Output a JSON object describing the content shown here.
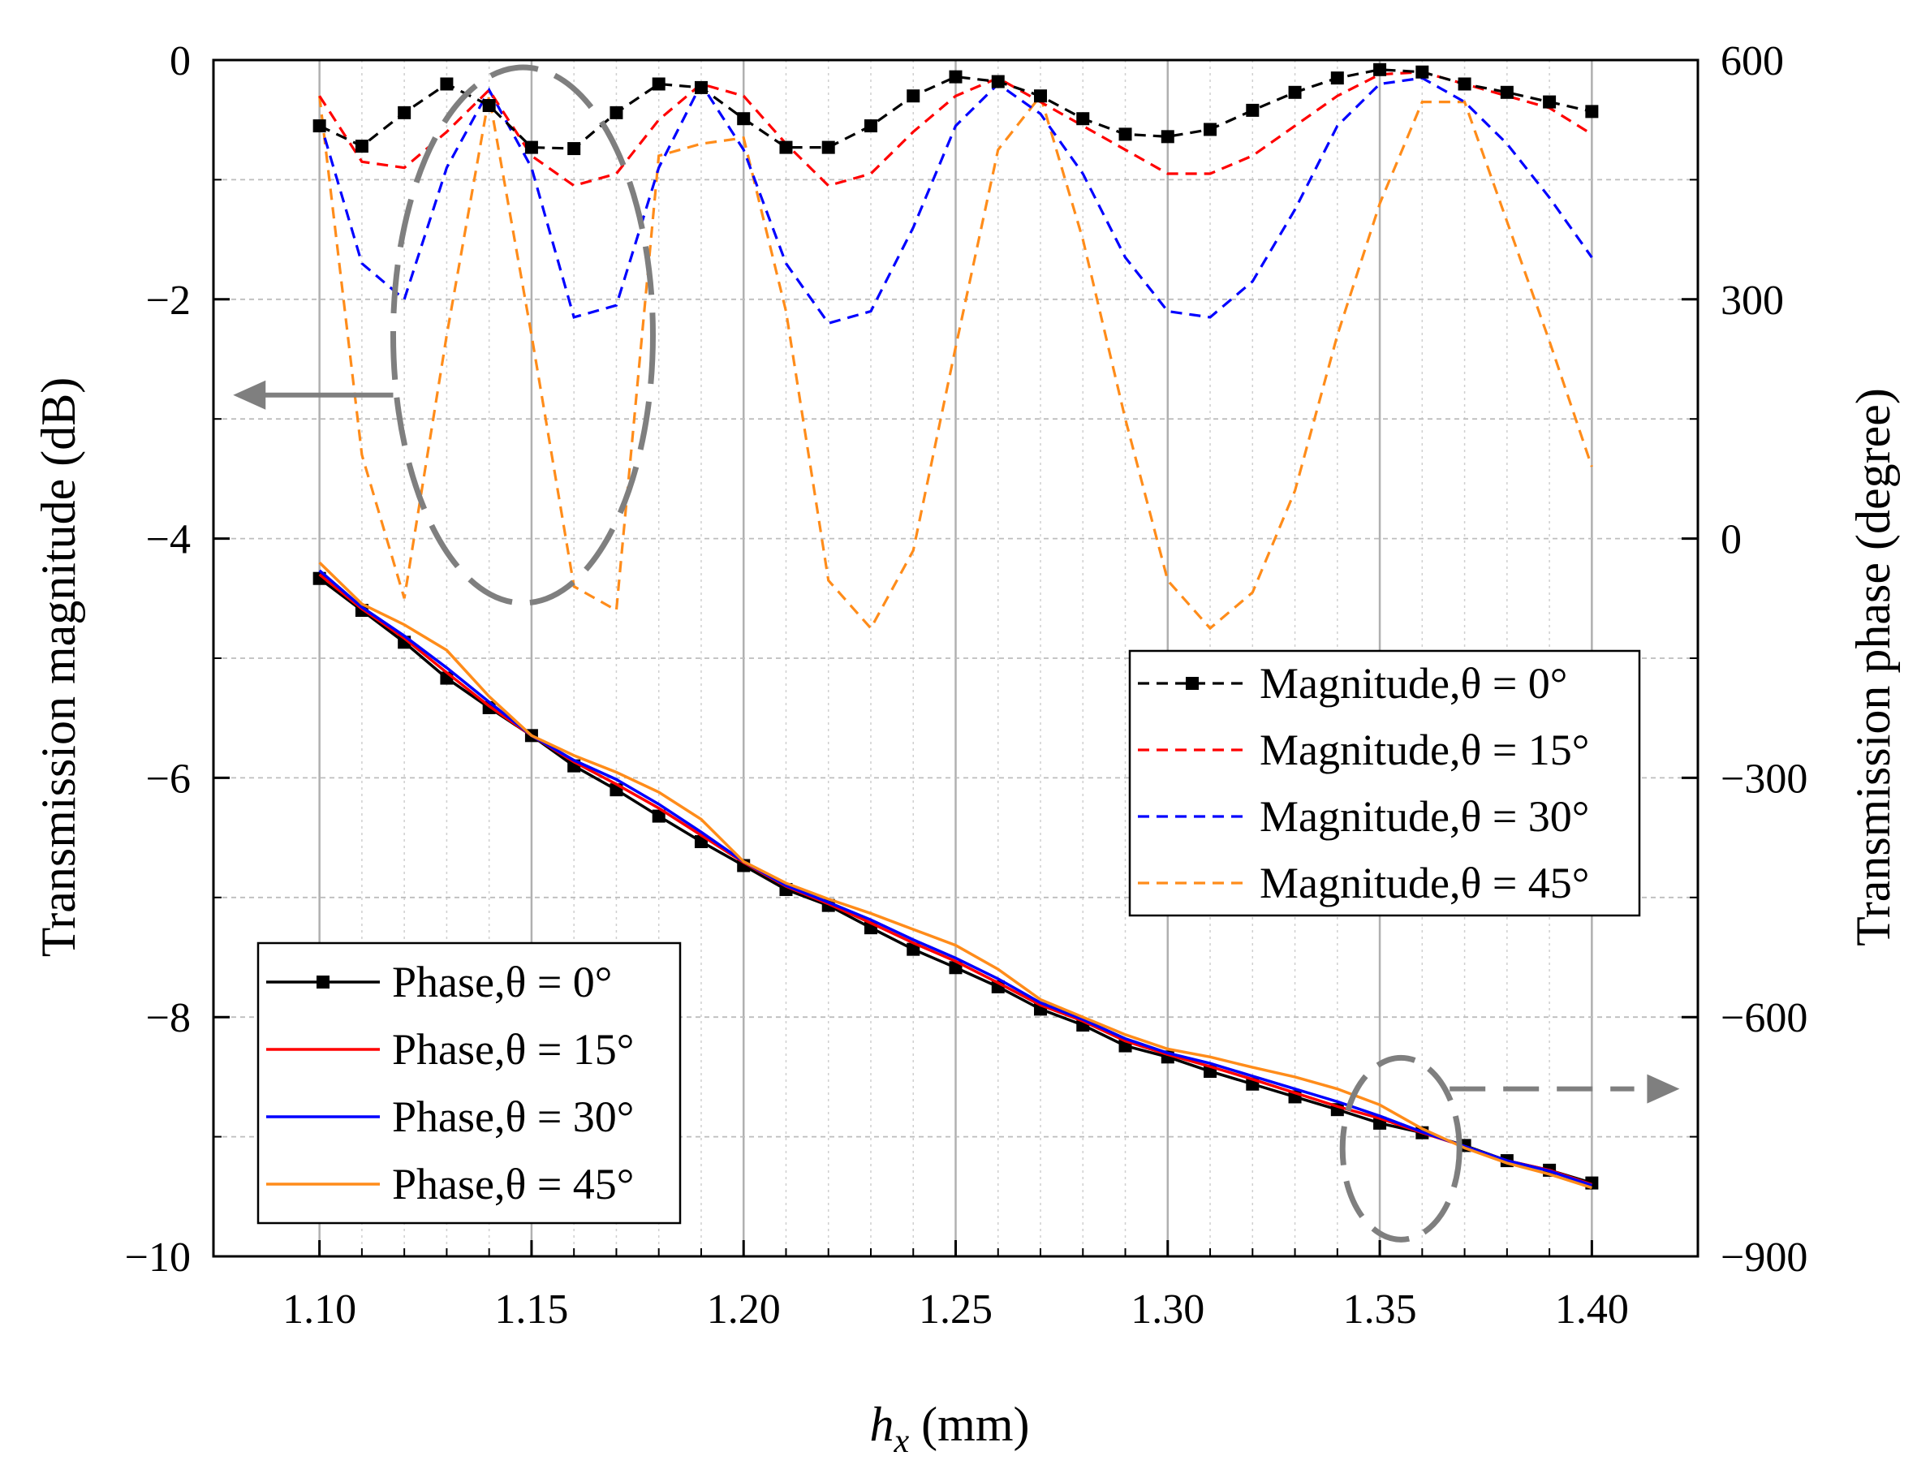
{
  "chart_data": {
    "type": "line",
    "xlabel_italic": "h",
    "xlabel_sub": "x",
    "xlabel_rest": " (mm)",
    "ylabel_left": "Transmission magnitude (dB)",
    "ylabel_right": "Transmission phase (degree)",
    "xlim": [
      1.075,
      1.425
    ],
    "ylim_left": [
      -10,
      0
    ],
    "ylim_right": [
      -900,
      600
    ],
    "x_ticks": [
      1.1,
      1.15,
      1.2,
      1.25,
      1.3,
      1.35,
      1.4
    ],
    "x_tick_labels": [
      "1.10",
      "1.15",
      "1.20",
      "1.25",
      "1.30",
      "1.35",
      "1.40"
    ],
    "y_left_ticks": [
      0,
      -2,
      -4,
      -6,
      -8,
      -10
    ],
    "y_left_tick_labels": [
      "0",
      "−2",
      "−4",
      "−6",
      "−8",
      "−10"
    ],
    "y_right_ticks": [
      600,
      300,
      0,
      -300,
      -600,
      -900
    ],
    "y_right_tick_labels": [
      "600",
      "300",
      "0",
      "−300",
      "−600",
      "−900"
    ],
    "grid": true,
    "colors": {
      "theta0": "#000000",
      "theta15": "#ff0000",
      "theta30": "#0000ff",
      "theta45": "#ff8c1a",
      "annotation": "#7f7f7f",
      "grid": "#bfbfbf"
    },
    "x": [
      1.1,
      1.11,
      1.12,
      1.13,
      1.14,
      1.15,
      1.16,
      1.17,
      1.18,
      1.19,
      1.2,
      1.21,
      1.22,
      1.23,
      1.24,
      1.25,
      1.26,
      1.27,
      1.28,
      1.29,
      1.3,
      1.31,
      1.32,
      1.33,
      1.34,
      1.35,
      1.36,
      1.37,
      1.38,
      1.39,
      1.4
    ],
    "magnitude_series": [
      {
        "name": "Magnitude,θ = 0°",
        "color": "theta0",
        "markers": true,
        "values": [
          -0.55,
          -0.72,
          -0.44,
          -0.2,
          -0.38,
          -0.73,
          -0.74,
          -0.44,
          -0.2,
          -0.23,
          -0.49,
          -0.73,
          -0.73,
          -0.55,
          -0.3,
          -0.14,
          -0.18,
          -0.3,
          -0.49,
          -0.62,
          -0.64,
          -0.58,
          -0.42,
          -0.27,
          -0.15,
          -0.08,
          -0.1,
          -0.2,
          -0.27,
          -0.35,
          -0.43
        ]
      },
      {
        "name": "Magnitude,θ = 15°",
        "color": "theta15",
        "markers": false,
        "values": [
          -0.3,
          -0.85,
          -0.9,
          -0.6,
          -0.25,
          -0.8,
          -1.05,
          -0.95,
          -0.5,
          -0.2,
          -0.3,
          -0.7,
          -1.05,
          -0.95,
          -0.6,
          -0.3,
          -0.15,
          -0.35,
          -0.55,
          -0.75,
          -0.95,
          -0.95,
          -0.8,
          -0.55,
          -0.3,
          -0.12,
          -0.1,
          -0.2,
          -0.3,
          -0.4,
          -0.62
        ]
      },
      {
        "name": "Magnitude,θ = 30°",
        "color": "theta30",
        "markers": false,
        "values": [
          -0.5,
          -1.7,
          -2.0,
          -0.9,
          -0.25,
          -0.9,
          -2.15,
          -2.05,
          -0.9,
          -0.2,
          -0.75,
          -1.7,
          -2.2,
          -2.1,
          -1.4,
          -0.55,
          -0.2,
          -0.45,
          -0.95,
          -1.65,
          -2.1,
          -2.15,
          -1.85,
          -1.25,
          -0.55,
          -0.2,
          -0.15,
          -0.35,
          -0.7,
          -1.15,
          -1.65
        ]
      },
      {
        "name": "Magnitude,θ = 45°",
        "color": "theta45",
        "markers": false,
        "values": [
          -0.3,
          -3.3,
          -4.5,
          -2.3,
          -0.3,
          -2.3,
          -4.4,
          -4.6,
          -0.8,
          -0.7,
          -0.65,
          -2.1,
          -4.35,
          -4.75,
          -4.1,
          -2.4,
          -0.75,
          -0.3,
          -1.5,
          -3.0,
          -4.35,
          -4.75,
          -4.45,
          -3.6,
          -2.3,
          -1.2,
          -0.35,
          -0.35,
          -1.35,
          -2.35,
          -3.4
        ]
      }
    ],
    "phase_series": [
      {
        "name": "Phase,θ = 0°",
        "color": "theta0",
        "markers": true,
        "values": [
          -50,
          -90,
          -130,
          -175,
          -212,
          -247,
          -285,
          -315,
          -348,
          -380,
          -410,
          -440,
          -460,
          -488,
          -515,
          -538,
          -562,
          -590,
          -610,
          -636,
          -650,
          -668,
          -684,
          -700,
          -716,
          -733,
          -745,
          -761,
          -780,
          -792,
          -808
        ]
      },
      {
        "name": "Phase,θ = 15°",
        "color": "theta15",
        "markers": false,
        "values": [
          -45,
          -88,
          -125,
          -168,
          -210,
          -247,
          -280,
          -308,
          -338,
          -372,
          -406,
          -436,
          -458,
          -482,
          -507,
          -530,
          -557,
          -585,
          -605,
          -630,
          -647,
          -662,
          -678,
          -695,
          -712,
          -727,
          -745,
          -762,
          -780,
          -792,
          -810
        ]
      },
      {
        "name": "Phase,θ = 30°",
        "color": "theta30",
        "markers": false,
        "values": [
          -40,
          -86,
          -122,
          -162,
          -205,
          -247,
          -278,
          -302,
          -333,
          -368,
          -405,
          -435,
          -456,
          -478,
          -503,
          -526,
          -552,
          -582,
          -603,
          -627,
          -645,
          -658,
          -674,
          -690,
          -706,
          -724,
          -744,
          -762,
          -780,
          -793,
          -811
        ]
      },
      {
        "name": "Phase,θ = 45°",
        "color": "theta45",
        "markers": false,
        "values": [
          -30,
          -82,
          -108,
          -140,
          -198,
          -247,
          -272,
          -293,
          -318,
          -352,
          -405,
          -432,
          -452,
          -470,
          -490,
          -510,
          -540,
          -578,
          -600,
          -622,
          -640,
          -650,
          -663,
          -675,
          -690,
          -710,
          -740,
          -764,
          -783,
          -797,
          -814
        ]
      }
    ],
    "legend_upper_right": [
      "Magnitude,θ = 0°",
      "Magnitude,θ = 15°",
      "Magnitude,θ = 30°",
      "Magnitude,θ = 45°"
    ],
    "legend_lower_left": [
      "Phase,θ = 0°",
      "Phase,θ = 15°",
      "Phase,θ = 30°",
      "Phase,θ = 45°"
    ],
    "annotations": [
      {
        "name": "left-axis-indicator",
        "points_to": "left axis",
        "dashed_ellipse_around_x": 1.148,
        "arrow": "left"
      },
      {
        "name": "right-axis-indicator",
        "points_to": "right axis",
        "dashed_ellipse_around_x": 1.355,
        "arrow": "right"
      }
    ]
  }
}
